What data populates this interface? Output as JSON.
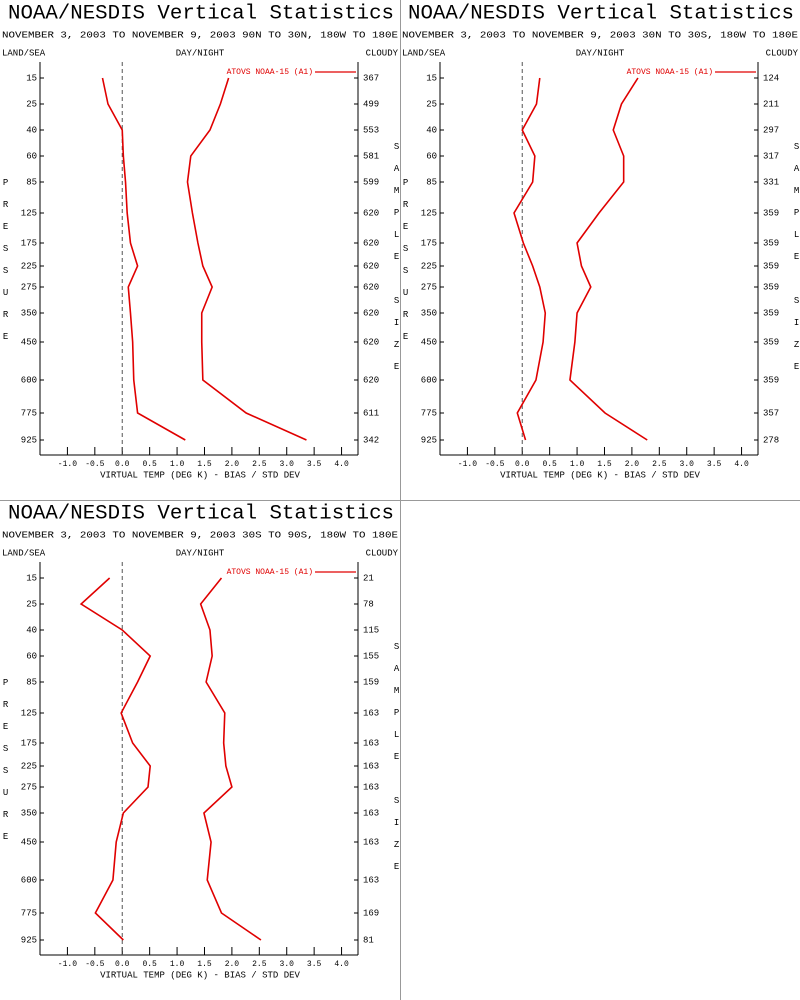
{
  "chart_data": [
    {
      "type": "line",
      "title": "NOAA/NESDIS Vertical Statistics",
      "subtitle": "NOVEMBER 3, 2003 TO NOVEMBER 9, 2003 90N TO 30N, 180W TO 180E",
      "land_sea": "LAND/SEA",
      "day_night": "DAY/NIGHT",
      "cloudy": "CLOUDY",
      "xlabel": "VIRTUAL TEMP (DEG K) - BIAS / STD DEV",
      "ylabel": "PRESSURE",
      "y2label": "SAMPLE SIZE",
      "legend": "ATOVS NOAA-15 (A1)",
      "categories": [
        "15",
        "25",
        "40",
        "60",
        "85",
        "125",
        "175",
        "225",
        "275",
        "350",
        "450",
        "600",
        "775",
        "925"
      ],
      "sample_size": [
        "367",
        "499",
        "553",
        "581",
        "599",
        "620",
        "620",
        "620",
        "620",
        "620",
        "620",
        "620",
        "611",
        "342"
      ],
      "series": [
        {
          "color": "#e00000",
          "values": [
            -0.36,
            -0.26,
            0.0,
            0.02,
            0.06,
            0.09,
            0.15,
            0.28,
            0.11,
            0.15,
            0.19,
            0.21,
            0.28,
            1.15
          ]
        },
        {
          "color": "#e00000",
          "values": [
            1.94,
            1.79,
            1.6,
            1.25,
            1.19,
            1.28,
            1.38,
            1.47,
            1.64,
            1.45,
            1.45,
            1.47,
            2.26,
            3.36
          ]
        }
      ],
      "xlim": [
        -1.5,
        4.3
      ],
      "xticks": [
        {
          "value": -1,
          "label": "-1.0"
        },
        -0.5,
        {
          "value": 0,
          "label": "0.0"
        },
        0.5,
        {
          "value": 1,
          "label": "1.0"
        },
        1.5,
        {
          "value": 2,
          "label": "2.0"
        },
        2.5,
        {
          "value": 3,
          "label": "3.0"
        },
        3.5,
        {
          "value": 4,
          "label": "4.0"
        }
      ]
    },
    {
      "type": "line",
      "title": "NOAA/NESDIS Vertical Statistics",
      "subtitle": "NOVEMBER 3, 2003 TO NOVEMBER 9, 2003 30N TO 30S, 180W TO 180E",
      "land_sea": "LAND/SEA",
      "day_night": "DAY/NIGHT",
      "cloudy": "CLOUDY",
      "xlabel": "VIRTUAL TEMP (DEG K) - BIAS / STD DEV",
      "ylabel": "PRESSURE",
      "y2label": "SAMPLE SIZE",
      "legend": "ATOVS NOAA-15 (A1)",
      "categories": [
        "15",
        "25",
        "40",
        "60",
        "85",
        "125",
        "175",
        "225",
        "275",
        "350",
        "450",
        "600",
        "775",
        "925"
      ],
      "sample_size": [
        "124",
        "211",
        "297",
        "317",
        "331",
        "359",
        "359",
        "359",
        "359",
        "359",
        "359",
        "359",
        "357",
        "278"
      ],
      "series": [
        {
          "color": "#e00000",
          "values": [
            0.32,
            0.26,
            0.0,
            0.23,
            0.19,
            -0.15,
            0.02,
            0.19,
            0.32,
            0.42,
            0.38,
            0.25,
            -0.09,
            0.06
          ]
        },
        {
          "color": "#e00000",
          "values": [
            2.11,
            1.81,
            1.66,
            1.85,
            1.85,
            1.4,
            1.0,
            1.08,
            1.25,
            1.0,
            0.96,
            0.87,
            1.51,
            2.28
          ]
        }
      ],
      "xlim": [
        -1.5,
        4.3
      ],
      "xticks": [
        {
          "value": -1,
          "label": "-1.0"
        },
        -0.5,
        {
          "value": 0,
          "label": "0.0"
        },
        0.5,
        {
          "value": 1,
          "label": "1.0"
        },
        1.5,
        {
          "value": 2,
          "label": "2.0"
        },
        2.5,
        {
          "value": 3,
          "label": "3.0"
        },
        3.5,
        {
          "value": 4,
          "label": "4.0"
        }
      ]
    },
    {
      "type": "line",
      "title": "NOAA/NESDIS Vertical Statistics",
      "subtitle": "NOVEMBER 3, 2003 TO NOVEMBER 9, 2003 30S TO 90S, 180W TO 180E",
      "land_sea": "LAND/SEA",
      "day_night": "DAY/NIGHT",
      "cloudy": "CLOUDY",
      "xlabel": "VIRTUAL TEMP (DEG K) - BIAS / STD DEV",
      "ylabel": "PRESSURE",
      "y2label": "SAMPLE SIZE",
      "legend": "ATOVS NOAA-15 (A1)",
      "categories": [
        "15",
        "25",
        "40",
        "60",
        "85",
        "125",
        "175",
        "225",
        "275",
        "350",
        "450",
        "600",
        "775",
        "925"
      ],
      "sample_size": [
        "21",
        "78",
        "115",
        "155",
        "159",
        "163",
        "163",
        "163",
        "163",
        "163",
        "163",
        "163",
        "169",
        "81"
      ],
      "series": [
        {
          "color": "#e00000",
          "values": [
            -0.23,
            -0.75,
            0.0,
            0.51,
            0.28,
            -0.02,
            0.19,
            0.51,
            0.47,
            0.02,
            -0.11,
            -0.17,
            -0.49,
            0.02
          ]
        },
        {
          "color": "#e00000",
          "values": [
            1.81,
            1.43,
            1.6,
            1.64,
            1.53,
            1.87,
            1.85,
            1.89,
            2.0,
            1.49,
            1.62,
            1.55,
            1.81,
            2.53
          ]
        }
      ],
      "xlim": [
        -1.5,
        4.3
      ],
      "xticks": [
        {
          "value": -1,
          "label": "-1.0"
        },
        -0.5,
        {
          "value": 0,
          "label": "0.0"
        },
        0.5,
        {
          "value": 1,
          "label": "1.0"
        },
        1.5,
        {
          "value": 2,
          "label": "2.0"
        },
        2.5,
        {
          "value": 3,
          "label": "3.0"
        },
        3.5,
        {
          "value": 4,
          "label": "4.0"
        }
      ]
    }
  ]
}
